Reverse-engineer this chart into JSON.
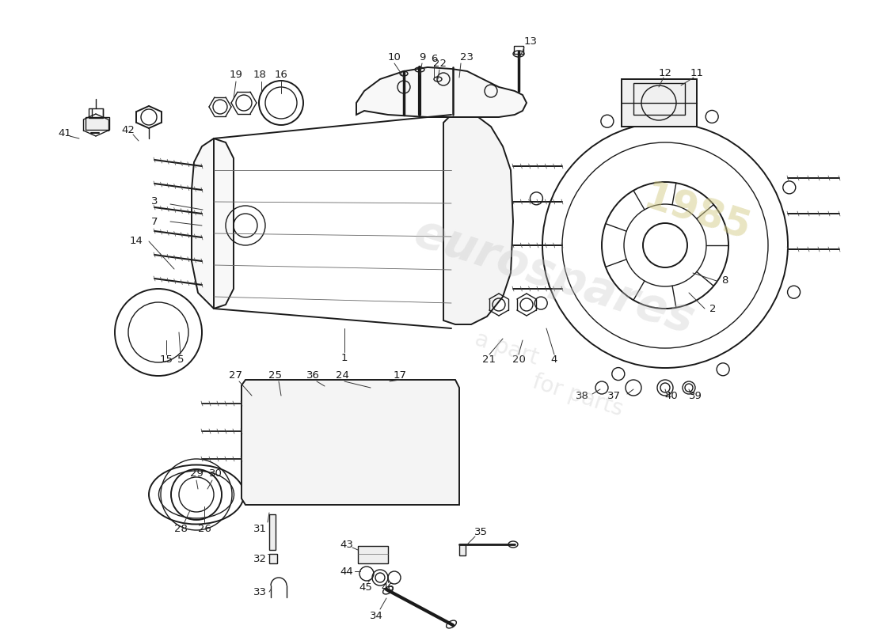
{
  "background_color": "#ffffff",
  "line_color": "#1a1a1a",
  "label_color": "#1a1a1a",
  "label_fontsize": 9.5,
  "wm1_text": "eurospares",
  "wm2_text": "a part",
  "wm3_text": "for parts",
  "wm4_text": "1985",
  "wm1_size": 42,
  "wm2_size": 22,
  "wm_color": "#c8c8c8",
  "wm_year_color": "#d4cc88",
  "wm_alpha": 0.35,
  "wm_year_alpha": 0.5
}
